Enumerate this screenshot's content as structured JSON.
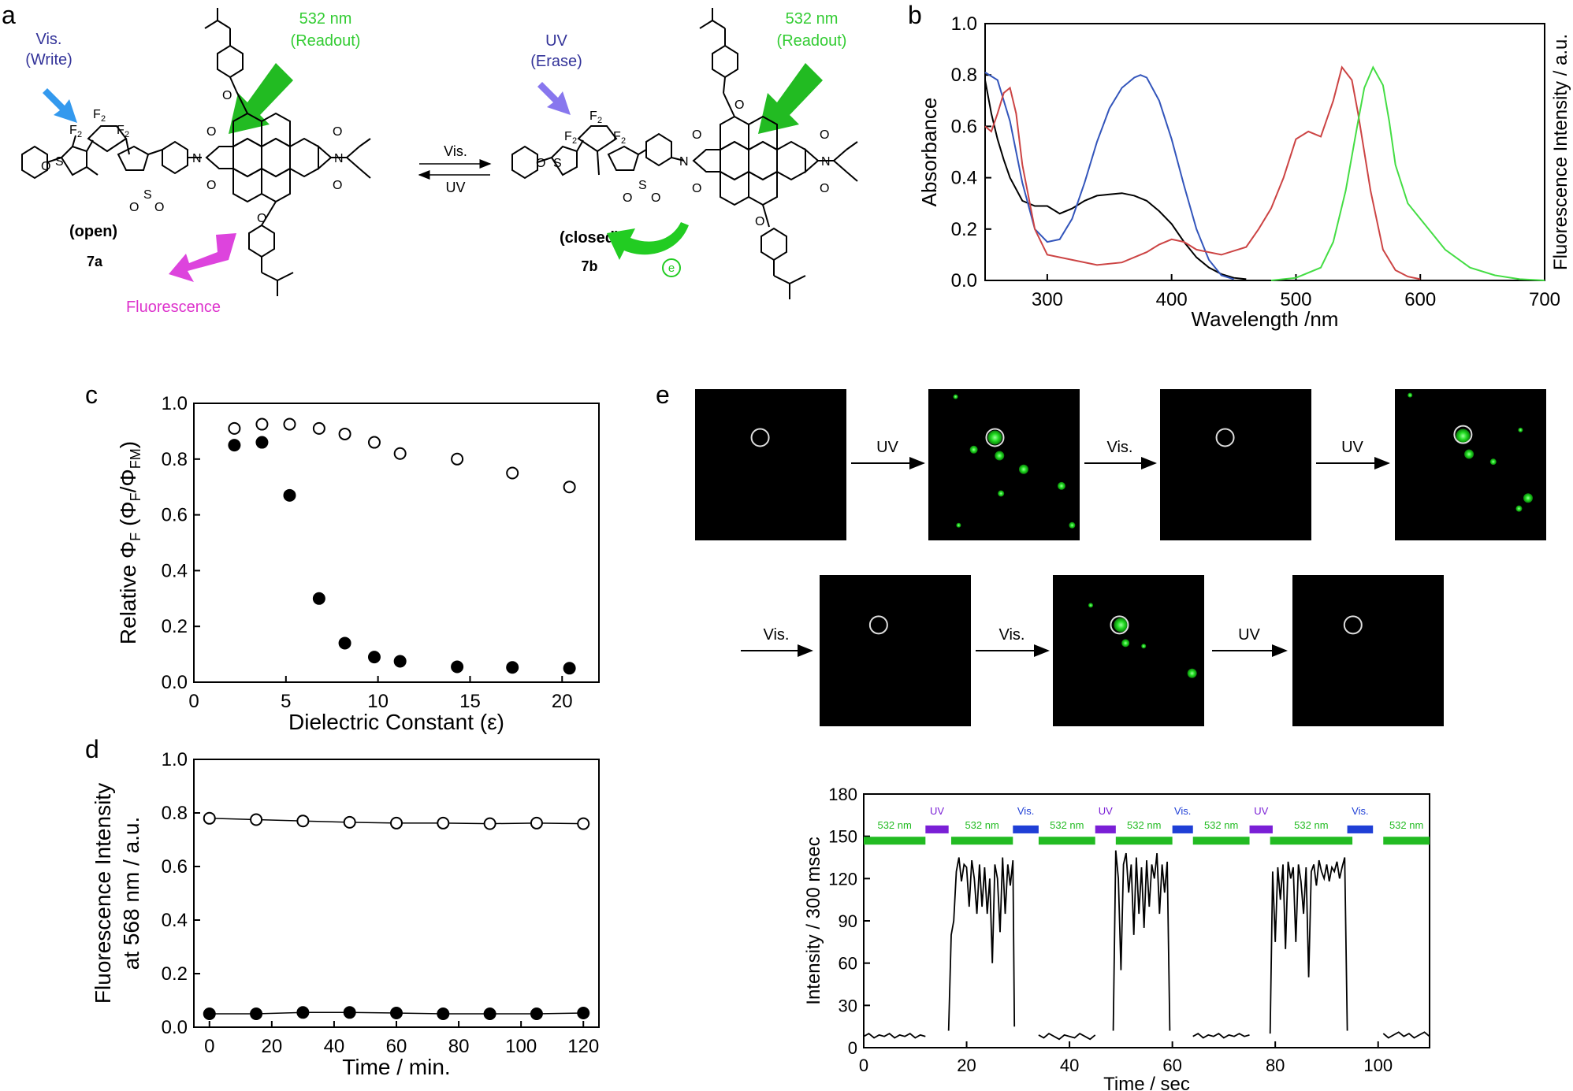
{
  "panels": {
    "a": "a",
    "b": "b",
    "c": "c",
    "d": "d",
    "e": "e"
  },
  "colors": {
    "green": "#2ecc40",
    "blue": "#3333aa",
    "magenta": "#dd33cc",
    "red": "#cc4444",
    "black": "#000000",
    "uvbar": "#7a1fd6",
    "visbar": "#1f3fd6",
    "bar532": "#22bb22"
  },
  "panel_a": {
    "vis_write": [
      "Vis.",
      "(Write)"
    ],
    "readout_left": [
      "532 nm",
      "(Readout)"
    ],
    "uv_erase": [
      "UV",
      "(Erase)"
    ],
    "readout_right": [
      "532 nm",
      "(Readout)"
    ],
    "open_label": "(open)",
    "closed_label": "(closed)",
    "compound_open": "7a",
    "compound_closed": "7b",
    "fluorescence": "Fluorescence",
    "arrow_vis": "Vis.",
    "arrow_uv": "UV",
    "electron": "e"
  },
  "chart_data": [
    {
      "panel": "b",
      "type": "line",
      "xlabel": "Wavelength /nm",
      "ylabel": "Absorbance",
      "ylabel_right": "Fluorescence Intensity / a.u.",
      "xlim": [
        250,
        700
      ],
      "ylim": [
        0.0,
        1.0
      ],
      "xticks": [
        300,
        400,
        500,
        600,
        700
      ],
      "yticks": [
        "0.0",
        "0.2",
        "0.4",
        "0.6",
        "0.8",
        "1.0"
      ],
      "series": [
        {
          "color": "#000000",
          "x": [
            250,
            255,
            260,
            265,
            270,
            280,
            290,
            300,
            310,
            320,
            330,
            340,
            350,
            360,
            370,
            380,
            390,
            400,
            410,
            420,
            430,
            440,
            450,
            460
          ],
          "y": [
            0.78,
            0.65,
            0.55,
            0.47,
            0.4,
            0.31,
            0.29,
            0.29,
            0.26,
            0.28,
            0.31,
            0.33,
            0.335,
            0.34,
            0.33,
            0.31,
            0.27,
            0.22,
            0.15,
            0.09,
            0.05,
            0.025,
            0.01,
            0.005
          ]
        },
        {
          "color": "#3355bb",
          "x": [
            250,
            260,
            270,
            280,
            290,
            300,
            310,
            320,
            330,
            340,
            350,
            360,
            370,
            375,
            380,
            390,
            400,
            410,
            420,
            430,
            440,
            450
          ],
          "y": [
            0.81,
            0.78,
            0.62,
            0.38,
            0.2,
            0.15,
            0.16,
            0.24,
            0.38,
            0.54,
            0.67,
            0.75,
            0.79,
            0.8,
            0.79,
            0.7,
            0.55,
            0.37,
            0.2,
            0.08,
            0.02,
            0.005
          ]
        },
        {
          "color": "#cc4444",
          "x": [
            250,
            255,
            260,
            265,
            270,
            275,
            280,
            290,
            300,
            320,
            340,
            360,
            380,
            390,
            400,
            410,
            420,
            440,
            460,
            470,
            480,
            490,
            500,
            510,
            520,
            530,
            537,
            545,
            550,
            560,
            570,
            580,
            590,
            600
          ],
          "y": [
            0.6,
            0.58,
            0.65,
            0.73,
            0.75,
            0.65,
            0.45,
            0.2,
            0.1,
            0.08,
            0.06,
            0.07,
            0.11,
            0.14,
            0.16,
            0.15,
            0.12,
            0.1,
            0.13,
            0.2,
            0.28,
            0.4,
            0.55,
            0.58,
            0.56,
            0.7,
            0.83,
            0.78,
            0.65,
            0.35,
            0.12,
            0.04,
            0.015,
            0.005
          ]
        },
        {
          "color": "#44dd44",
          "x": [
            480,
            500,
            520,
            530,
            540,
            550,
            555,
            562,
            570,
            575,
            580,
            590,
            600,
            610,
            620,
            640,
            660,
            680,
            700
          ],
          "y": [
            0.0,
            0.01,
            0.05,
            0.15,
            0.35,
            0.62,
            0.75,
            0.83,
            0.76,
            0.62,
            0.45,
            0.3,
            0.24,
            0.18,
            0.12,
            0.05,
            0.02,
            0.005,
            0.0
          ]
        }
      ]
    },
    {
      "panel": "c",
      "type": "scatter",
      "xlabel": "Dielectric Constant (ε)",
      "ylabel_parts": [
        "Relative Φ",
        "F",
        " (Φ",
        "F",
        "/Φ",
        "FM",
        ")"
      ],
      "xlim": [
        0,
        22
      ],
      "ylim": [
        0.0,
        1.0
      ],
      "xticks": [
        "0",
        "5",
        "10",
        "15",
        "20"
      ],
      "yticks": [
        "0.0",
        "0.2",
        "0.4",
        "0.6",
        "0.8",
        "1.0"
      ],
      "series": [
        {
          "marker": "open",
          "x": [
            2.2,
            3.7,
            5.2,
            6.8,
            8.2,
            9.8,
            11.2,
            14.3,
            17.3,
            20.4
          ],
          "y": [
            0.91,
            0.925,
            0.925,
            0.91,
            0.89,
            0.86,
            0.82,
            0.8,
            0.75,
            0.7
          ]
        },
        {
          "marker": "filled",
          "x": [
            2.2,
            3.7,
            5.2,
            6.8,
            8.2,
            9.8,
            11.2,
            14.3,
            17.3,
            20.4
          ],
          "y": [
            0.85,
            0.86,
            0.67,
            0.3,
            0.14,
            0.09,
            0.075,
            0.055,
            0.053,
            0.05
          ]
        }
      ]
    },
    {
      "panel": "d",
      "type": "line",
      "xlabel": "Time / min.",
      "ylabel": [
        "Fluorescence Intensity",
        "at 568 nm / a.u."
      ],
      "xlim": [
        -5,
        125
      ],
      "ylim": [
        0.0,
        1.0
      ],
      "xticks": [
        "0",
        "20",
        "40",
        "60",
        "80",
        "100",
        "120"
      ],
      "yticks": [
        "0.0",
        "0.2",
        "0.4",
        "0.6",
        "0.8",
        "1.0"
      ],
      "series": [
        {
          "marker": "open",
          "x": [
            0,
            15,
            30,
            45,
            60,
            75,
            90,
            105,
            120
          ],
          "y": [
            0.78,
            0.775,
            0.77,
            0.765,
            0.762,
            0.762,
            0.76,
            0.762,
            0.76
          ]
        },
        {
          "marker": "filled",
          "x": [
            0,
            15,
            30,
            45,
            60,
            75,
            90,
            105,
            120
          ],
          "y": [
            0.05,
            0.05,
            0.055,
            0.055,
            0.053,
            0.05,
            0.05,
            0.05,
            0.053
          ]
        }
      ]
    },
    {
      "panel": "e-trace",
      "type": "line",
      "xlabel": "Time / sec",
      "ylabel": "Intensity / 300 msec",
      "xlim": [
        0,
        110
      ],
      "ylim": [
        0,
        180
      ],
      "xticks": [
        "0",
        "20",
        "40",
        "60",
        "80",
        "100"
      ],
      "yticks": [
        "0",
        "30",
        "60",
        "90",
        "120",
        "150",
        "180"
      ],
      "bars_532": [
        [
          0,
          12
        ],
        [
          17,
          29
        ],
        [
          34,
          45
        ],
        [
          49,
          60
        ],
        [
          64,
          75
        ],
        [
          79,
          95
        ],
        [
          101,
          110
        ]
      ],
      "bars_uv": [
        [
          12,
          16.5
        ],
        [
          45,
          49
        ],
        [
          75,
          79.5
        ]
      ],
      "bars_vis": [
        [
          29,
          34
        ],
        [
          60,
          64
        ],
        [
          94,
          99
        ]
      ],
      "bar_labels": {
        "nm": "532 nm",
        "uv": "UV",
        "vis": "Vis."
      },
      "trace": [
        [
          [
            0,
            8
          ],
          [
            1,
            10
          ],
          [
            2,
            7
          ],
          [
            3,
            9
          ],
          [
            4,
            8
          ],
          [
            5,
            10
          ],
          [
            6,
            7
          ],
          [
            7,
            9
          ],
          [
            8,
            8
          ],
          [
            9,
            10
          ],
          [
            10,
            7
          ],
          [
            11,
            9
          ],
          [
            12,
            8
          ]
        ],
        [
          [
            16.5,
            12
          ],
          [
            17,
            80
          ],
          [
            17.5,
            90
          ],
          [
            18,
            125
          ],
          [
            18.5,
            135
          ],
          [
            19,
            118
          ],
          [
            19.5,
            130
          ],
          [
            20,
            128
          ],
          [
            20.5,
            100
          ],
          [
            21,
            133
          ],
          [
            21.5,
            120
          ],
          [
            22,
            95
          ],
          [
            22.5,
            130
          ],
          [
            23,
            100
          ],
          [
            23.5,
            128
          ],
          [
            24,
            95
          ],
          [
            24.5,
            120
          ],
          [
            25,
            60
          ],
          [
            25.5,
            130
          ],
          [
            26,
            120
          ],
          [
            26.5,
            82
          ],
          [
            27,
            135
          ],
          [
            27.5,
            95
          ],
          [
            28,
            130
          ],
          [
            28.5,
            115
          ],
          [
            29,
            133
          ],
          [
            29.3,
            15
          ]
        ],
        [
          [
            34,
            9
          ],
          [
            35,
            7
          ],
          [
            36,
            10
          ],
          [
            37,
            8
          ],
          [
            38,
            6
          ],
          [
            39,
            9
          ],
          [
            40,
            8
          ],
          [
            41,
            7
          ],
          [
            42,
            10
          ],
          [
            43,
            8
          ],
          [
            44,
            6
          ],
          [
            45,
            9
          ]
        ],
        [
          [
            48.5,
            12
          ],
          [
            49,
            140
          ],
          [
            49.5,
            120
          ],
          [
            50,
            55
          ],
          [
            50.5,
            130
          ],
          [
            51,
            138
          ],
          [
            51.5,
            110
          ],
          [
            52,
            130
          ],
          [
            52.5,
            80
          ],
          [
            53,
            135
          ],
          [
            53.5,
            95
          ],
          [
            54,
            128
          ],
          [
            54.5,
            85
          ],
          [
            55,
            133
          ],
          [
            55.5,
            100
          ],
          [
            56,
            130
          ],
          [
            56.5,
            120
          ],
          [
            57,
            138
          ],
          [
            57.5,
            95
          ],
          [
            58,
            130
          ],
          [
            58.5,
            110
          ],
          [
            59,
            132
          ],
          [
            59.5,
            12
          ]
        ],
        [
          [
            64,
            8
          ],
          [
            65,
            10
          ],
          [
            66,
            7
          ],
          [
            67,
            9
          ],
          [
            68,
            8
          ],
          [
            69,
            10
          ],
          [
            70,
            7
          ],
          [
            71,
            9
          ],
          [
            72,
            8
          ],
          [
            73,
            10
          ],
          [
            74,
            8
          ],
          [
            75,
            9
          ]
        ],
        [
          [
            79,
            10
          ],
          [
            79.5,
            125
          ],
          [
            80,
            75
          ],
          [
            80.5,
            128
          ],
          [
            81,
            105
          ],
          [
            81.5,
            130
          ],
          [
            82,
            70
          ],
          [
            82.5,
            132
          ],
          [
            83,
            120
          ],
          [
            83.5,
            128
          ],
          [
            84,
            75
          ],
          [
            84.5,
            130
          ],
          [
            85,
            118
          ],
          [
            85.5,
            95
          ],
          [
            86,
            128
          ],
          [
            86.5,
            50
          ],
          [
            87,
            125
          ],
          [
            87.5,
            130
          ],
          [
            88,
            115
          ],
          [
            88.5,
            133
          ],
          [
            89,
            125
          ],
          [
            89.5,
            120
          ],
          [
            90,
            130
          ],
          [
            90.5,
            118
          ],
          [
            91,
            128
          ],
          [
            91.5,
            125
          ],
          [
            92,
            132
          ],
          [
            92.5,
            120
          ],
          [
            93,
            128
          ],
          [
            93.5,
            135
          ],
          [
            94,
            12
          ]
        ],
        [
          [
            101,
            10
          ],
          [
            102,
            7
          ],
          [
            103,
            9
          ],
          [
            104,
            11
          ],
          [
            105,
            8
          ],
          [
            106,
            10
          ],
          [
            107,
            7
          ],
          [
            108,
            9
          ],
          [
            109,
            11
          ],
          [
            110,
            8
          ]
        ]
      ]
    }
  ],
  "panel_e": {
    "arrows": [
      "UV",
      "Vis.",
      "UV",
      "Vis.",
      "Vis.",
      "UV"
    ],
    "images": [
      {
        "bright": false
      },
      {
        "bright": true
      },
      {
        "bright": false
      },
      {
        "bright": true
      },
      {
        "bright": false
      },
      {
        "bright": true
      },
      {
        "bright": false
      }
    ]
  }
}
